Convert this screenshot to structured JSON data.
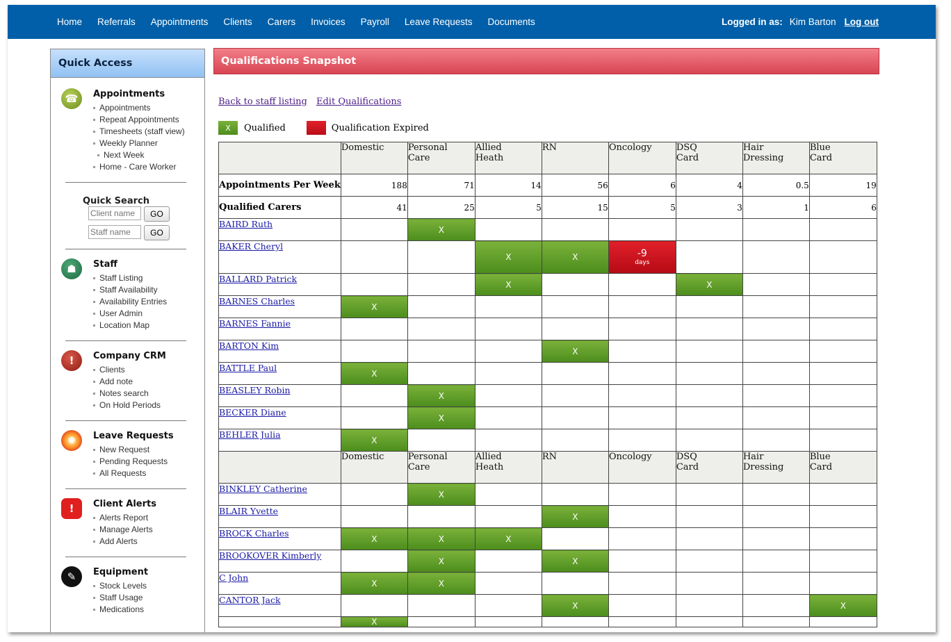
{
  "nav": {
    "items": [
      "Home",
      "Referrals",
      "Appointments",
      "Clients",
      "Carers",
      "Invoices",
      "Payroll",
      "Leave Requests",
      "Documents"
    ],
    "logged_in_label": "Logged in as:",
    "user": "Kim Barton",
    "logout": "Log out"
  },
  "sidebar": {
    "title": "Quick Access",
    "appointments": {
      "title": "Appointments",
      "items": [
        "Appointments",
        "Repeat Appointments",
        "Timesheets (staff view)",
        "Weekly Planner",
        "Next Week",
        "Home - Care Worker"
      ]
    },
    "quick_search": {
      "title": "Quick Search",
      "client_placeholder": "Client name",
      "staff_placeholder": "Staff name",
      "go": "GO"
    },
    "staff": {
      "title": "Staff",
      "items": [
        "Staff Listing",
        "Staff Availability",
        "Availability Entries",
        "User Admin",
        "Location Map"
      ]
    },
    "crm": {
      "title": "Company CRM",
      "items": [
        "Clients",
        "Add note",
        "Notes search",
        "On Hold Periods"
      ]
    },
    "leave": {
      "title": "Leave Requests",
      "items": [
        "New Request",
        "Pending Requests",
        "All Requests"
      ]
    },
    "alerts": {
      "title": "Client Alerts",
      "items": [
        "Alerts Report",
        "Manage Alerts",
        "Add Alerts"
      ]
    },
    "equipment": {
      "title": "Equipment",
      "items": [
        "Stock Levels",
        "Staff Usage",
        "Medications"
      ]
    }
  },
  "main": {
    "title": "Qualifications Snapshot",
    "back_link": "Back to staff listing",
    "edit_link": "Edit Qualifications",
    "legend": {
      "qualified_mark": "X",
      "qualified": "Qualified",
      "expired": "Qualification Expired"
    },
    "columns": [
      [
        "Domestic"
      ],
      [
        "Personal",
        "Care"
      ],
      [
        "Allied",
        "Heath"
      ],
      [
        "RN"
      ],
      [
        "Oncology"
      ],
      [
        "DSQ",
        "Card"
      ],
      [
        "Hair",
        "Dressing"
      ],
      [
        "Blue",
        "Card"
      ]
    ],
    "appointments_label": "Appointments Per Week",
    "appointments_per_week": [
      "188",
      "71",
      "14",
      "56",
      "6",
      "4",
      "0.5",
      "19"
    ],
    "qualified_label": "Qualified Carers",
    "qualified_carers": [
      "41",
      "25",
      "5",
      "15",
      "5",
      "3",
      "1",
      "6"
    ],
    "mark": "X",
    "expired_days": "-9",
    "expired_unit": "days",
    "staff_group1": [
      {
        "name": "BAIRD Ruth",
        "quals": [
          "",
          "X",
          "",
          "",
          "",
          "",
          "",
          ""
        ]
      },
      {
        "name": "BAKER Cheryl",
        "quals": [
          "",
          "",
          "X",
          "X",
          "E",
          "",
          "",
          ""
        ]
      },
      {
        "name": "BALLARD Patrick",
        "quals": [
          "",
          "",
          "X",
          "",
          "",
          "X",
          "",
          ""
        ]
      },
      {
        "name": "BARNES Charles",
        "quals": [
          "X",
          "",
          "",
          "",
          "",
          "",
          "",
          ""
        ]
      },
      {
        "name": "BARNES Fannie",
        "quals": [
          "",
          "",
          "",
          "",
          "",
          "",
          "",
          ""
        ]
      },
      {
        "name": "BARTON Kim",
        "quals": [
          "",
          "",
          "",
          "X",
          "",
          "",
          "",
          ""
        ]
      },
      {
        "name": "BATTLE Paul",
        "quals": [
          "X",
          "",
          "",
          "",
          "",
          "",
          "",
          ""
        ]
      },
      {
        "name": "BEASLEY Robin",
        "quals": [
          "",
          "X",
          "",
          "",
          "",
          "",
          "",
          ""
        ]
      },
      {
        "name": "BECKER Diane",
        "quals": [
          "",
          "X",
          "",
          "",
          "",
          "",
          "",
          ""
        ]
      },
      {
        "name": "BEHLER Julia",
        "quals": [
          "X",
          "",
          "",
          "",
          "",
          "",
          "",
          ""
        ]
      }
    ],
    "staff_group2": [
      {
        "name": "BINKLEY Catherine",
        "quals": [
          "",
          "X",
          "",
          "",
          "",
          "",
          "",
          ""
        ]
      },
      {
        "name": "BLAIR Yvette",
        "quals": [
          "",
          "",
          "",
          "X",
          "",
          "",
          "",
          ""
        ]
      },
      {
        "name": "BROCK Charles",
        "quals": [
          "X",
          "X",
          "X",
          "",
          "",
          "",
          "",
          ""
        ]
      },
      {
        "name": "BROOKOVER Kimberly",
        "quals": [
          "",
          "X",
          "",
          "X",
          "",
          "",
          "",
          ""
        ]
      },
      {
        "name": "C John",
        "quals": [
          "X",
          "X",
          "",
          "",
          "",
          "",
          "",
          ""
        ]
      },
      {
        "name": "CANTOR Jack",
        "quals": [
          "",
          "",
          "",
          "X",
          "",
          "",
          "",
          "X"
        ]
      },
      {
        "name": "",
        "quals": [
          "X",
          "",
          "",
          "",
          "",
          "",
          "",
          ""
        ]
      }
    ]
  }
}
